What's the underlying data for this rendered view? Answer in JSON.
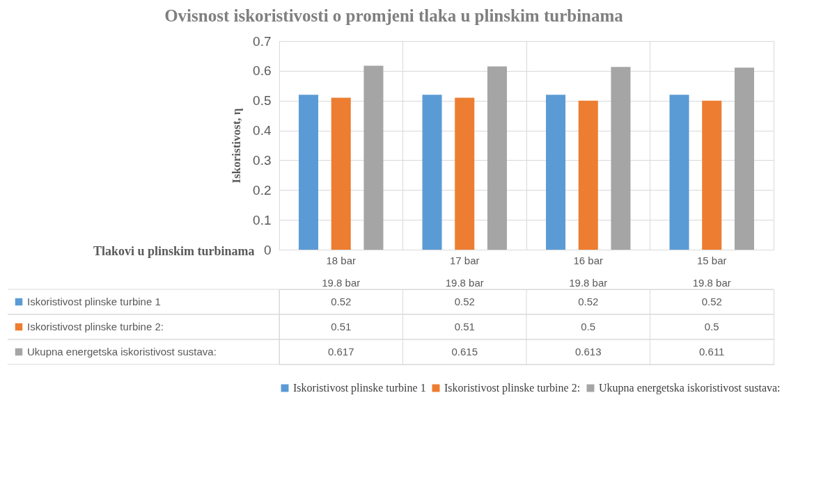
{
  "chart_data": {
    "type": "bar",
    "title": "Ovisnost iskoristivosti o promjeni tlaka u plinskim turbinama",
    "xlabel": "Tlakovi u plinskim turbinama",
    "ylabel": "Iskoristivost, η",
    "categories": [
      "18 bar\n19.8 bar",
      "17 bar\n19.8 bar",
      "16 bar\n19.8 bar",
      "15 bar\n19.8 bar"
    ],
    "series": [
      {
        "name": "Iskoristivost plinske turbine 1",
        "color": "#5b9bd5",
        "values": [
          0.52,
          0.52,
          0.52,
          0.52
        ]
      },
      {
        "name": "Iskoristivost plinske turbine 2:",
        "color": "#ed7d31",
        "values": [
          0.51,
          0.51,
          0.5,
          0.5
        ]
      },
      {
        "name": "Ukupna energetska iskoristivost sustava:",
        "color": "#a5a5a5",
        "values": [
          0.617,
          0.615,
          0.613,
          0.611
        ]
      }
    ],
    "ylim": [
      0,
      0.7
    ],
    "yticks": [
      0,
      0.1,
      0.2,
      0.3,
      0.4,
      0.5,
      0.6,
      0.7
    ],
    "grid": true,
    "legend": "bottom",
    "data_labels": true
  }
}
